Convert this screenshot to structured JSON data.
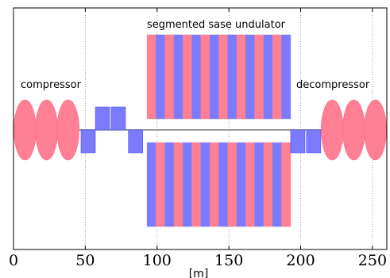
{
  "chart_data": {
    "type": "diagram",
    "xlabel": "[m]",
    "xlim": [
      0,
      260
    ],
    "xticks": [
      0,
      50,
      100,
      150,
      200,
      250
    ],
    "grid_x": true,
    "colors": {
      "pink": "#ff7f93",
      "blue": "#7b7bff",
      "axis_line": "#999999"
    },
    "annotations": {
      "top": "segmented sase undulator",
      "left": "compressor",
      "right": "decompressor"
    },
    "compressor_ellipses_x": [
      8,
      23,
      38
    ],
    "decompressor_ellipses_x": [
      222,
      237,
      252
    ],
    "chicane_magnets": [
      {
        "x0": 47,
        "x1": 57,
        "side": "below"
      },
      {
        "x0": 57,
        "x1": 67,
        "side": "above"
      },
      {
        "x0": 68,
        "x1": 78,
        "side": "above"
      },
      {
        "x0": 80,
        "x1": 90,
        "side": "below"
      },
      {
        "x0": 193,
        "x1": 203,
        "side": "below"
      },
      {
        "x0": 204,
        "x1": 214,
        "side": "below"
      }
    ],
    "undulator": {
      "x_start": 93,
      "x_end": 193,
      "period_count": 8,
      "upper_pattern": [
        "pink",
        "blue"
      ],
      "lower_pattern": [
        "blue",
        "pink"
      ]
    }
  }
}
